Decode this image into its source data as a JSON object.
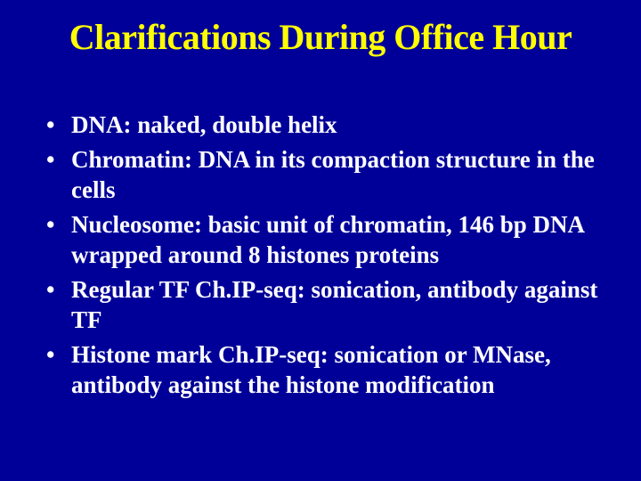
{
  "slide": {
    "title": "Clarifications During Office Hour",
    "background_color": "#000099",
    "title_color": "#ffff00",
    "text_color": "#ffffff",
    "title_fontsize": 40,
    "body_fontsize": 27,
    "font_family": "Times New Roman",
    "bullets": [
      "DNA: naked, double helix",
      "Chromatin: DNA in its compaction structure in the cells",
      "Nucleosome: basic unit of chromatin, 146 bp DNA wrapped around 8 histones proteins",
      "Regular TF Ch.IP-seq: sonication, antibody against TF",
      "Histone mark Ch.IP-seq: sonication or MNase, antibody against the histone modification"
    ]
  }
}
